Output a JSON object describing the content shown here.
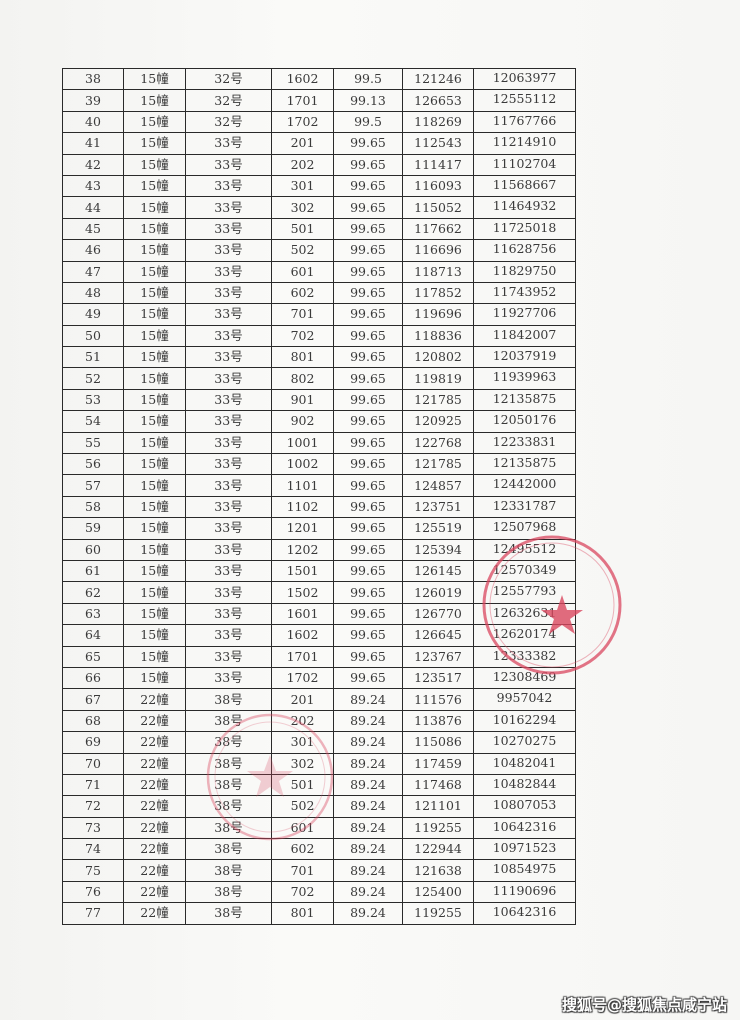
{
  "table": {
    "rows": [
      [
        "38",
        "15幢",
        "32号",
        "1602",
        "99.5",
        "121246",
        "12063977"
      ],
      [
        "39",
        "15幢",
        "32号",
        "1701",
        "99.13",
        "126653",
        "12555112"
      ],
      [
        "40",
        "15幢",
        "32号",
        "1702",
        "99.5",
        "118269",
        "11767766"
      ],
      [
        "41",
        "15幢",
        "33号",
        "201",
        "99.65",
        "112543",
        "11214910"
      ],
      [
        "42",
        "15幢",
        "33号",
        "202",
        "99.65",
        "111417",
        "11102704"
      ],
      [
        "43",
        "15幢",
        "33号",
        "301",
        "99.65",
        "116093",
        "11568667"
      ],
      [
        "44",
        "15幢",
        "33号",
        "302",
        "99.65",
        "115052",
        "11464932"
      ],
      [
        "45",
        "15幢",
        "33号",
        "501",
        "99.65",
        "117662",
        "11725018"
      ],
      [
        "46",
        "15幢",
        "33号",
        "502",
        "99.65",
        "116696",
        "11628756"
      ],
      [
        "47",
        "15幢",
        "33号",
        "601",
        "99.65",
        "118713",
        "11829750"
      ],
      [
        "48",
        "15幢",
        "33号",
        "602",
        "99.65",
        "117852",
        "11743952"
      ],
      [
        "49",
        "15幢",
        "33号",
        "701",
        "99.65",
        "119696",
        "11927706"
      ],
      [
        "50",
        "15幢",
        "33号",
        "702",
        "99.65",
        "118836",
        "11842007"
      ],
      [
        "51",
        "15幢",
        "33号",
        "801",
        "99.65",
        "120802",
        "12037919"
      ],
      [
        "52",
        "15幢",
        "33号",
        "802",
        "99.65",
        "119819",
        "11939963"
      ],
      [
        "53",
        "15幢",
        "33号",
        "901",
        "99.65",
        "121785",
        "12135875"
      ],
      [
        "54",
        "15幢",
        "33号",
        "902",
        "99.65",
        "120925",
        "12050176"
      ],
      [
        "55",
        "15幢",
        "33号",
        "1001",
        "99.65",
        "122768",
        "12233831"
      ],
      [
        "56",
        "15幢",
        "33号",
        "1002",
        "99.65",
        "121785",
        "12135875"
      ],
      [
        "57",
        "15幢",
        "33号",
        "1101",
        "99.65",
        "124857",
        "12442000"
      ],
      [
        "58",
        "15幢",
        "33号",
        "1102",
        "99.65",
        "123751",
        "12331787"
      ],
      [
        "59",
        "15幢",
        "33号",
        "1201",
        "99.65",
        "125519",
        "12507968"
      ],
      [
        "60",
        "15幢",
        "33号",
        "1202",
        "99.65",
        "125394",
        "12495512"
      ],
      [
        "61",
        "15幢",
        "33号",
        "1501",
        "99.65",
        "126145",
        "12570349"
      ],
      [
        "62",
        "15幢",
        "33号",
        "1502",
        "99.65",
        "126019",
        "12557793"
      ],
      [
        "63",
        "15幢",
        "33号",
        "1601",
        "99.65",
        "126770",
        "12632631"
      ],
      [
        "64",
        "15幢",
        "33号",
        "1602",
        "99.65",
        "126645",
        "12620174"
      ],
      [
        "65",
        "15幢",
        "33号",
        "1701",
        "99.65",
        "123767",
        "12333382"
      ],
      [
        "66",
        "15幢",
        "33号",
        "1702",
        "99.65",
        "123517",
        "12308469"
      ],
      [
        "67",
        "22幢",
        "38号",
        "201",
        "89.24",
        "111576",
        "9957042"
      ],
      [
        "68",
        "22幢",
        "38号",
        "202",
        "89.24",
        "113876",
        "10162294"
      ],
      [
        "69",
        "22幢",
        "38号",
        "301",
        "89.24",
        "115086",
        "10270275"
      ],
      [
        "70",
        "22幢",
        "38号",
        "302",
        "89.24",
        "117459",
        "10482041"
      ],
      [
        "71",
        "22幢",
        "38号",
        "501",
        "89.24",
        "117468",
        "10482844"
      ],
      [
        "72",
        "22幢",
        "38号",
        "502",
        "89.24",
        "121101",
        "10807053"
      ],
      [
        "73",
        "22幢",
        "38号",
        "601",
        "89.24",
        "119255",
        "10642316"
      ],
      [
        "74",
        "22幢",
        "38号",
        "602",
        "89.24",
        "122944",
        "10971523"
      ],
      [
        "75",
        "22幢",
        "38号",
        "701",
        "89.24",
        "121638",
        "10854975"
      ],
      [
        "76",
        "22幢",
        "38号",
        "702",
        "89.24",
        "125400",
        "11190696"
      ],
      [
        "77",
        "22幢",
        "38号",
        "801",
        "89.24",
        "119255",
        "10642316"
      ]
    ]
  },
  "stamps": {
    "color": "#d9475f"
  },
  "watermark": {
    "text": "搜狐号@搜狐焦点咸宁站"
  }
}
